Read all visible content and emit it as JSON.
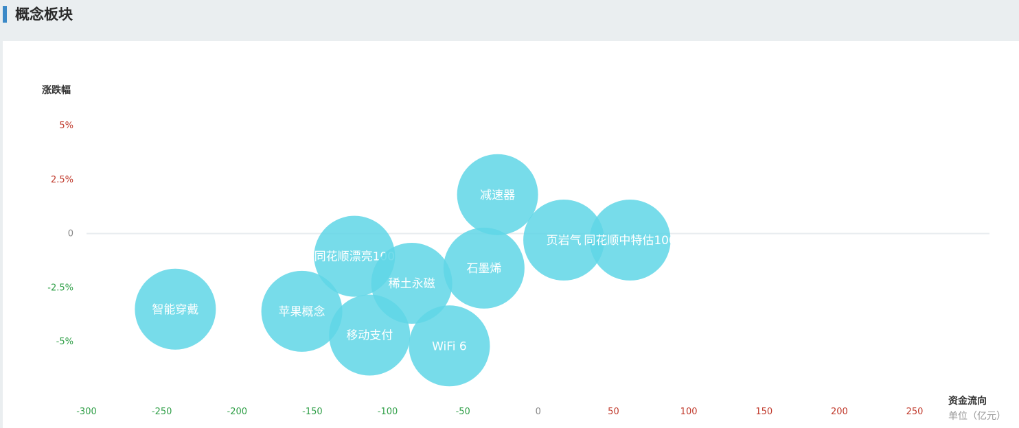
{
  "header": {
    "title": "概念板块"
  },
  "chart_data": {
    "type": "scatter",
    "style": "bubble",
    "ylabel": "涨跌幅",
    "xlabel": "资金流向",
    "xunit": "单位（亿元）",
    "xlim": [
      -300,
      250
    ],
    "ylim": [
      -7.5,
      5
    ],
    "x_ticks": [
      -300,
      -250,
      -200,
      -150,
      -100,
      -50,
      0,
      50,
      100,
      150,
      200,
      250
    ],
    "x_tick_labels": [
      "-300",
      "-250",
      "-200",
      "-150",
      "-100",
      "-50",
      "0",
      "50",
      "100",
      "150",
      "200",
      "250"
    ],
    "y_ticks": [
      5,
      2.5,
      0,
      -2.5,
      -5
    ],
    "y_tick_labels": [
      "5%",
      "2.5%",
      "0",
      "-2.5%",
      "-5%"
    ],
    "colors": {
      "bubble": "#5fd6e6",
      "positive": "#c0392b",
      "negative": "#2e9e46",
      "neutral": "#888888",
      "zero_line": "#e8ecef"
    },
    "points": [
      {
        "name": "智能穿戴",
        "x": -241,
        "y": -3.5
      },
      {
        "name": "苹果概念",
        "x": -157,
        "y": -3.6
      },
      {
        "name": "同花顺漂亮100",
        "x": -122,
        "y": -1.05
      },
      {
        "name": "稀土永磁",
        "x": -84,
        "y": -2.3
      },
      {
        "name": "移动支付",
        "x": -112,
        "y": -4.7
      },
      {
        "name": "WiFi 6",
        "x": -59,
        "y": -5.2
      },
      {
        "name": "石墨烯",
        "x": -36,
        "y": -1.6
      },
      {
        "name": "减速器",
        "x": -27,
        "y": 1.8
      },
      {
        "name": "页岩气",
        "x": 17,
        "y": -0.3
      },
      {
        "name": "同花顺中特估100",
        "x": 61,
        "y": -0.3
      }
    ]
  }
}
